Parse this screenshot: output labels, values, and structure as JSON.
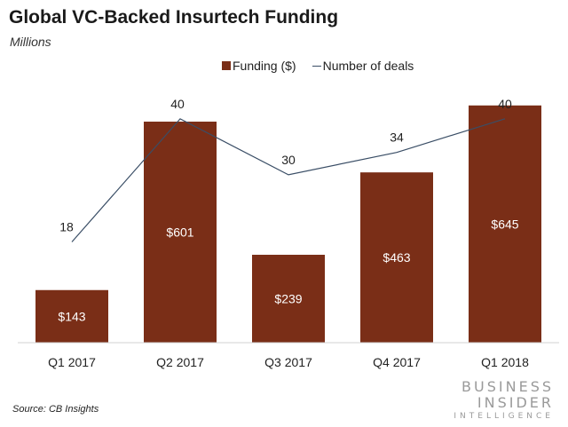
{
  "header": {
    "title": "Global VC-Backed Insurtech Funding",
    "subtitle": "Millions"
  },
  "legend": {
    "bar_label": "Funding ($)",
    "line_label": "Number of deals"
  },
  "colors": {
    "bar": "#7a2e17",
    "line": "#3a4e66"
  },
  "chart_data": {
    "type": "bar",
    "title": "Global VC-Backed Insurtech Funding",
    "subtitle": "Millions",
    "categories": [
      "Q1 2017",
      "Q2 2017",
      "Q3 2017",
      "Q4 2017",
      "Q1 2018"
    ],
    "series": [
      {
        "name": "Funding ($)",
        "type": "bar",
        "values": [
          143,
          601,
          239,
          463,
          645
        ],
        "labels": [
          "$143",
          "$601",
          "$239",
          "$463",
          "$645"
        ]
      },
      {
        "name": "Number of deals",
        "type": "line",
        "values": [
          18,
          40,
          30,
          34,
          40
        ],
        "labels": [
          "18",
          "40",
          "30",
          "34",
          "40"
        ]
      }
    ],
    "bar_axis_max": 700,
    "line_axis_range": [
      0,
      46
    ],
    "legend_position": "top-center",
    "grid": false
  },
  "footer": {
    "source": "Source: CB Insights",
    "brand_line1": "BUSINESS",
    "brand_line2": "INSIDER",
    "brand_line3": "INTELLIGENCE"
  }
}
